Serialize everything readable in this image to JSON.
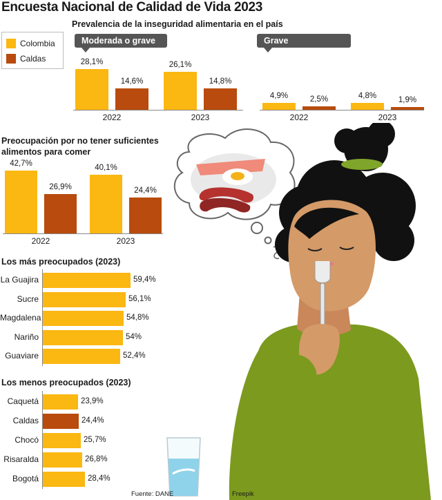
{
  "title": "Encuesta Nacional de Calidad de Vida 2023",
  "colors": {
    "colombia": "#FBB712",
    "caldas": "#B84B0D",
    "tag_bg": "#555555"
  },
  "legend": [
    {
      "name": "Colombia",
      "color": "#FBB712"
    },
    {
      "name": "Caldas",
      "color": "#B84B0D"
    }
  ],
  "footer": {
    "source": "Fuente: DANE",
    "credit": "Freepik"
  },
  "chart_data": [
    {
      "type": "bar",
      "title": "Prevalencia de la inseguridad alimentaria en el país",
      "panel": "Moderada o grave",
      "categories": [
        "2022",
        "2023"
      ],
      "series": [
        {
          "name": "Colombia",
          "values": [
            28.1,
            26.1
          ],
          "labels": [
            "28,1%",
            "26,1%"
          ]
        },
        {
          "name": "Caldas",
          "values": [
            14.6,
            14.8
          ],
          "labels": [
            "14,6%",
            "14,8%"
          ]
        }
      ]
    },
    {
      "type": "bar",
      "panel": "Grave",
      "categories": [
        "2022",
        "2023"
      ],
      "series": [
        {
          "name": "Colombia",
          "values": [
            4.9,
            4.8
          ],
          "labels": [
            "4,9%",
            "4,8%"
          ]
        },
        {
          "name": "Caldas",
          "values": [
            2.5,
            1.9
          ],
          "labels": [
            "2,5%",
            "1,9%"
          ]
        }
      ]
    },
    {
      "type": "bar",
      "title": "Preocupación por no tener suficientes alimentos para comer",
      "categories": [
        "2022",
        "2023"
      ],
      "series": [
        {
          "name": "Colombia",
          "values": [
            42.7,
            40.1
          ],
          "labels": [
            "42,7%",
            "40,1%"
          ]
        },
        {
          "name": "Caldas",
          "values": [
            26.9,
            24.4
          ],
          "labels": [
            "26,9%",
            "24,4%"
          ]
        }
      ]
    },
    {
      "type": "bar",
      "orientation": "horizontal",
      "title": "Los más preocupados (2023)",
      "categories": [
        "La Guajira",
        "Sucre",
        "Magdalena",
        "Nariño",
        "Guaviare"
      ],
      "values": [
        59.4,
        56.1,
        54.8,
        54,
        52.4
      ],
      "labels": [
        "59,4%",
        "56,1%",
        "54,8%",
        "54%",
        "52,4%"
      ]
    },
    {
      "type": "bar",
      "orientation": "horizontal",
      "title": "Los menos preocupados (2023)",
      "categories": [
        "Caquetá",
        "Caldas",
        "Chocó",
        "Risaralda",
        "Bogotá"
      ],
      "values": [
        23.9,
        24.4,
        25.7,
        26.8,
        28.4
      ],
      "labels": [
        "23,9%",
        "24,4%",
        "25,7%",
        "26,8%",
        "28,4%"
      ],
      "highlight": "Caldas"
    }
  ]
}
